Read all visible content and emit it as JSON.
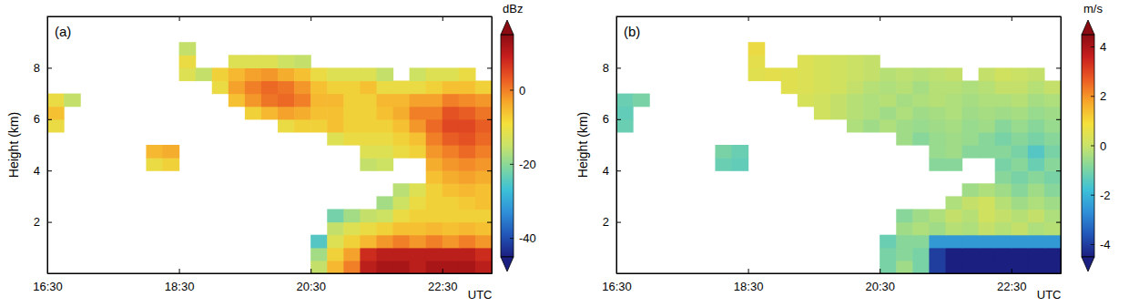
{
  "chart_data": [
    {
      "type": "heatmap",
      "title": "(a)",
      "x_label": "UTC",
      "y_label": "Height (km)",
      "xlim": [
        16.5,
        23.25
      ],
      "xticks": [
        {
          "value": 16.5,
          "label": "16:30"
        },
        {
          "value": 18.5,
          "label": "18:30"
        },
        {
          "value": 20.5,
          "label": "20:30"
        },
        {
          "value": 22.5,
          "label": "22:30"
        }
      ],
      "ylim": [
        0,
        10
      ],
      "yticks": [
        2,
        4,
        6,
        8
      ],
      "x_edges": [
        16.5,
        16.75,
        17,
        17.25,
        17.5,
        17.75,
        18,
        18.25,
        18.5,
        18.75,
        19,
        19.25,
        19.5,
        19.75,
        20,
        20.25,
        20.5,
        20.75,
        21,
        21.25,
        21.5,
        21.75,
        22,
        22.25,
        22.5,
        22.75,
        23,
        23.25
      ],
      "y_edges": [
        0,
        0.5,
        1,
        1.5,
        2,
        2.5,
        3,
        3.5,
        4,
        4.5,
        5,
        5.5,
        6,
        6.5,
        7,
        7.5,
        8,
        8.5,
        9
      ],
      "z": [
        [
          null,
          null,
          null,
          null,
          null,
          null,
          null,
          null,
          null,
          null,
          null,
          null,
          null,
          null,
          null,
          null,
          -15,
          -5,
          0,
          10,
          12,
          12,
          10,
          12,
          12,
          12,
          10
        ],
        [
          null,
          null,
          null,
          null,
          null,
          null,
          null,
          null,
          null,
          null,
          null,
          null,
          null,
          null,
          null,
          null,
          -18,
          -8,
          -3,
          8,
          10,
          10,
          10,
          10,
          10,
          10,
          8
        ],
        [
          null,
          null,
          null,
          null,
          null,
          null,
          null,
          null,
          null,
          null,
          null,
          null,
          null,
          null,
          null,
          null,
          -25,
          -12,
          -8,
          -5,
          -2,
          0,
          -2,
          0,
          -2,
          0,
          -2
        ],
        [
          null,
          null,
          null,
          null,
          null,
          null,
          null,
          null,
          null,
          null,
          null,
          null,
          null,
          null,
          null,
          null,
          null,
          -15,
          -12,
          -10,
          -8,
          -6,
          -6,
          -5,
          -6,
          -5,
          -6
        ],
        [
          null,
          null,
          null,
          null,
          null,
          null,
          null,
          null,
          null,
          null,
          null,
          null,
          null,
          null,
          null,
          null,
          null,
          -22,
          -18,
          -15,
          -14,
          -10,
          -8,
          -8,
          -8,
          -8,
          -8
        ],
        [
          null,
          null,
          null,
          null,
          null,
          null,
          null,
          null,
          null,
          null,
          null,
          null,
          null,
          null,
          null,
          null,
          null,
          null,
          null,
          null,
          -18,
          -14,
          -10,
          -8,
          -8,
          -7,
          -6
        ],
        [
          null,
          null,
          null,
          null,
          null,
          null,
          null,
          null,
          null,
          null,
          null,
          null,
          null,
          null,
          null,
          null,
          null,
          null,
          null,
          null,
          null,
          -16,
          -12,
          -8,
          -6,
          -5,
          -6
        ],
        [
          null,
          null,
          null,
          null,
          null,
          null,
          null,
          null,
          null,
          null,
          null,
          null,
          null,
          null,
          null,
          null,
          null,
          null,
          null,
          null,
          null,
          null,
          null,
          -6,
          -4,
          -3,
          -4
        ],
        [
          null,
          null,
          null,
          null,
          null,
          null,
          -10,
          -8,
          null,
          null,
          null,
          null,
          null,
          null,
          null,
          null,
          null,
          null,
          null,
          -15,
          -14,
          null,
          null,
          -4,
          -2,
          -1,
          -2
        ],
        [
          null,
          null,
          null,
          null,
          null,
          null,
          -5,
          -4,
          null,
          null,
          null,
          null,
          null,
          null,
          null,
          null,
          null,
          null,
          null,
          -12,
          -12,
          -10,
          -8,
          -2,
          0,
          2,
          0
        ],
        [
          null,
          null,
          null,
          null,
          null,
          null,
          null,
          null,
          null,
          null,
          null,
          null,
          null,
          null,
          null,
          null,
          null,
          -12,
          -10,
          -10,
          -10,
          -8,
          -6,
          0,
          3,
          4,
          2
        ],
        [
          -10,
          null,
          null,
          null,
          null,
          null,
          null,
          null,
          null,
          null,
          null,
          null,
          null,
          null,
          -10,
          -8,
          -8,
          -6,
          -8,
          -8,
          -8,
          -6,
          -2,
          2,
          5,
          5,
          3
        ],
        [
          -6,
          null,
          null,
          null,
          null,
          null,
          null,
          null,
          null,
          null,
          null,
          null,
          -8,
          -5,
          -3,
          -4,
          -6,
          -6,
          -8,
          -8,
          -6,
          -4,
          0,
          0,
          4,
          3,
          1
        ],
        [
          -10,
          -15,
          null,
          null,
          null,
          null,
          null,
          null,
          null,
          null,
          null,
          -6,
          -2,
          1,
          2,
          0,
          -5,
          -5,
          -8,
          -8,
          -5,
          -5,
          -3,
          -3,
          0,
          -1,
          -2
        ],
        [
          null,
          null,
          null,
          null,
          null,
          null,
          null,
          null,
          null,
          null,
          -10,
          -3,
          0,
          2,
          1,
          -2,
          -6,
          -8,
          -8,
          -6,
          -10,
          -10,
          -10,
          -8,
          -6,
          -6,
          -8
        ],
        [
          null,
          null,
          null,
          null,
          null,
          null,
          null,
          null,
          -12,
          -15,
          -8,
          -5,
          -3,
          -2,
          -4,
          -6,
          -10,
          -12,
          -12,
          -12,
          -15,
          null,
          -14,
          -12,
          -12,
          -10,
          null
        ],
        [
          null,
          null,
          null,
          null,
          null,
          null,
          null,
          null,
          -10,
          null,
          null,
          -12,
          -12,
          -12,
          -14,
          -15,
          null,
          null,
          null,
          null,
          null,
          null,
          null,
          null,
          null,
          null,
          null
        ],
        [
          null,
          null,
          null,
          null,
          null,
          null,
          null,
          null,
          -15,
          null,
          null,
          null,
          null,
          null,
          null,
          null,
          null,
          null,
          null,
          null,
          null,
          null,
          null,
          null,
          null,
          null,
          null
        ]
      ],
      "colorbar_label": "dBz",
      "colorbar_range": [
        -45,
        15
      ],
      "colorbar_ticks": [
        0,
        -20,
        -40
      ]
    },
    {
      "type": "heatmap",
      "title": "(b)",
      "x_label": "UTC",
      "y_label": "Height (km)",
      "xlim": [
        16.5,
        23.25
      ],
      "xticks": [
        {
          "value": 16.5,
          "label": "16:30"
        },
        {
          "value": 18.5,
          "label": "18:30"
        },
        {
          "value": 20.5,
          "label": "20:30"
        },
        {
          "value": 22.5,
          "label": "22:30"
        }
      ],
      "ylim": [
        0,
        10
      ],
      "yticks": [
        2,
        4,
        6,
        8
      ],
      "x_edges": [
        16.5,
        16.75,
        17,
        17.25,
        17.5,
        17.75,
        18,
        18.25,
        18.5,
        18.75,
        19,
        19.25,
        19.5,
        19.75,
        20,
        20.25,
        20.5,
        20.75,
        21,
        21.25,
        21.5,
        21.75,
        22,
        22.25,
        22.5,
        22.75,
        23,
        23.25
      ],
      "y_edges": [
        0,
        0.5,
        1,
        1.5,
        2,
        2.5,
        3,
        3.5,
        4,
        4.5,
        5,
        5.5,
        6,
        6.5,
        7,
        7.5,
        8,
        8.5,
        9
      ],
      "z": [
        [
          null,
          null,
          null,
          null,
          null,
          null,
          null,
          null,
          null,
          null,
          null,
          null,
          null,
          null,
          null,
          null,
          -1,
          -0.5,
          -1,
          -4,
          -4.5,
          -4.5,
          -4.5,
          -4.5,
          -4.5,
          -4.5,
          -4.5
        ],
        [
          null,
          null,
          null,
          null,
          null,
          null,
          null,
          null,
          null,
          null,
          null,
          null,
          null,
          null,
          null,
          null,
          -1,
          -0.8,
          -1,
          -4,
          -4.5,
          -4.5,
          -4.5,
          -4.5,
          -4.5,
          -4.5,
          -4.5
        ],
        [
          null,
          null,
          null,
          null,
          null,
          null,
          null,
          null,
          null,
          null,
          null,
          null,
          null,
          null,
          null,
          null,
          -1.2,
          -0.8,
          -0.8,
          -2.5,
          -2.5,
          -2.5,
          -2.5,
          -2.5,
          -2.5,
          -2.5,
          -2.5
        ],
        [
          null,
          null,
          null,
          null,
          null,
          null,
          null,
          null,
          null,
          null,
          null,
          null,
          null,
          null,
          null,
          null,
          null,
          -0.5,
          -0.3,
          -0.5,
          -0.2,
          -0.3,
          0,
          -0.2,
          0,
          -0.3,
          -0.2
        ],
        [
          null,
          null,
          null,
          null,
          null,
          null,
          null,
          null,
          null,
          null,
          null,
          null,
          null,
          null,
          null,
          null,
          null,
          -0.8,
          -0.5,
          -0.3,
          0,
          -0.2,
          0.2,
          0,
          -0.2,
          0,
          -0.3
        ],
        [
          null,
          null,
          null,
          null,
          null,
          null,
          null,
          null,
          null,
          null,
          null,
          null,
          null,
          null,
          null,
          null,
          null,
          null,
          null,
          null,
          -0.3,
          0,
          0.2,
          -0.2,
          -0.5,
          -0.3,
          -0.5
        ],
        [
          null,
          null,
          null,
          null,
          null,
          null,
          null,
          null,
          null,
          null,
          null,
          null,
          null,
          null,
          null,
          null,
          null,
          null,
          null,
          null,
          null,
          -0.5,
          -0.3,
          -0.5,
          -0.8,
          -0.5,
          -0.8
        ],
        [
          null,
          null,
          null,
          null,
          null,
          null,
          null,
          null,
          null,
          null,
          null,
          null,
          null,
          null,
          null,
          null,
          null,
          null,
          null,
          null,
          null,
          null,
          null,
          -0.8,
          -1,
          -0.8,
          -1
        ],
        [
          null,
          null,
          null,
          null,
          null,
          null,
          -1.2,
          -1.3,
          null,
          null,
          null,
          null,
          null,
          null,
          null,
          null,
          null,
          null,
          null,
          -0.8,
          -0.8,
          null,
          null,
          -1,
          -0.8,
          -1.2,
          -0.8
        ],
        [
          null,
          null,
          null,
          null,
          null,
          null,
          -1,
          -1.2,
          null,
          null,
          null,
          null,
          null,
          null,
          null,
          null,
          null,
          null,
          null,
          -0.6,
          -0.5,
          -0.8,
          -0.8,
          -0.8,
          -1,
          -1.5,
          -1
        ],
        [
          null,
          null,
          null,
          null,
          null,
          null,
          null,
          null,
          null,
          null,
          null,
          null,
          null,
          null,
          null,
          null,
          null,
          -0.5,
          -0.8,
          -0.6,
          -0.5,
          -0.6,
          -0.8,
          -1,
          -0.8,
          -1,
          -0.8
        ],
        [
          -1.2,
          null,
          null,
          null,
          null,
          null,
          null,
          null,
          null,
          null,
          null,
          null,
          null,
          null,
          -0.3,
          -0.5,
          -0.3,
          -0.5,
          -0.6,
          -0.5,
          -0.4,
          -0.6,
          -0.5,
          -0.8,
          -0.6,
          -0.8,
          -0.6
        ],
        [
          -1.3,
          null,
          null,
          null,
          null,
          null,
          null,
          null,
          null,
          null,
          null,
          null,
          0.2,
          0,
          -0.2,
          -0.3,
          -0.5,
          -0.3,
          -0.5,
          -0.4,
          -0.3,
          -0.5,
          -0.4,
          -0.5,
          -0.4,
          -0.6,
          -0.5
        ],
        [
          -1.2,
          -1,
          null,
          null,
          null,
          null,
          null,
          null,
          null,
          null,
          null,
          0.3,
          0.2,
          0,
          -0.2,
          -0.3,
          -0.2,
          -0.4,
          -0.3,
          -0.2,
          -0.3,
          -0.4,
          -0.3,
          -0.3,
          -0.2,
          -0.4,
          -0.3
        ],
        [
          null,
          null,
          null,
          null,
          null,
          null,
          null,
          null,
          null,
          null,
          0.5,
          0.4,
          0.3,
          0.2,
          0,
          -0.2,
          -0.3,
          -0.2,
          -0.4,
          -0.2,
          -0.2,
          -0.3,
          -0.2,
          0,
          0,
          -0.2,
          0
        ],
        [
          null,
          null,
          null,
          null,
          null,
          null,
          null,
          null,
          0.5,
          0.6,
          0.5,
          0.4,
          0.3,
          0.2,
          0.1,
          0,
          -0.2,
          -0.1,
          -0.2,
          -0.1,
          0,
          null,
          0,
          0.2,
          0.1,
          0,
          null
        ],
        [
          null,
          null,
          null,
          null,
          null,
          null,
          null,
          null,
          0.6,
          null,
          null,
          0.4,
          0.3,
          0.2,
          0.1,
          0,
          null,
          null,
          null,
          null,
          null,
          null,
          null,
          null,
          null,
          null,
          null
        ],
        [
          null,
          null,
          null,
          null,
          null,
          null,
          null,
          null,
          0.8,
          null,
          null,
          null,
          null,
          null,
          null,
          null,
          null,
          null,
          null,
          null,
          null,
          null,
          null,
          null,
          null,
          null,
          null
        ]
      ],
      "colorbar_label": "m/s",
      "colorbar_range": [
        -4.5,
        4.5
      ],
      "colorbar_ticks": [
        4,
        2,
        0,
        -2,
        -4
      ]
    }
  ]
}
